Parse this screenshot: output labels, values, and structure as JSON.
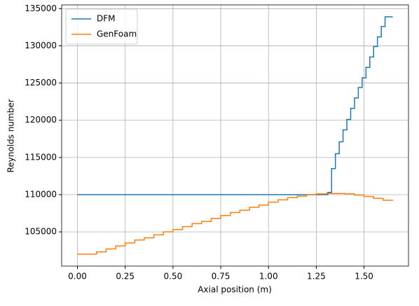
{
  "chart_data": {
    "type": "step",
    "xlabel": "Axial position (m)",
    "ylabel": "Reynolds number",
    "xlim": [
      -0.0825,
      1.7325
    ],
    "xticks": [
      {
        "value": 0,
        "label": "0.00"
      },
      0.25,
      {
        "value": 0.5,
        "label": "0.50"
      },
      0.75,
      {
        "value": 1,
        "label": "1.00"
      },
      1.25,
      {
        "value": 1.5,
        "label": "1.50"
      }
    ],
    "ylim": [
      100400,
      135500
    ],
    "yticks": [
      105000,
      110000,
      115000,
      120000,
      125000,
      130000,
      135000
    ],
    "grid": true,
    "legend": "upper left",
    "series": [
      {
        "name": "DFM",
        "color": "#1f77b4",
        "x": [
          0,
          1.3,
          1.31,
          1.33,
          1.35,
          1.37,
          1.39,
          1.41,
          1.43,
          1.45,
          1.47,
          1.49,
          1.51,
          1.53,
          1.55,
          1.57,
          1.59,
          1.61,
          1.63,
          1.65
        ],
        "values": [
          110000,
          110000,
          110300,
          113500,
          115500,
          117100,
          118700,
          120100,
          121600,
          123000,
          124400,
          125700,
          127100,
          128500,
          129900,
          131200,
          132600,
          133900,
          133900,
          133900
        ]
      },
      {
        "name": "GenFoam",
        "color": "#ff7f0e",
        "x": [
          0,
          0.05,
          0.1,
          0.15,
          0.2,
          0.25,
          0.3,
          0.35,
          0.4,
          0.45,
          0.5,
          0.55,
          0.6,
          0.65,
          0.7,
          0.75,
          0.8,
          0.85,
          0.9,
          0.95,
          1.0,
          1.05,
          1.1,
          1.15,
          1.2,
          1.25,
          1.3,
          1.35,
          1.4,
          1.45,
          1.5,
          1.55,
          1.6,
          1.65
        ],
        "values": [
          102000,
          102000,
          102300,
          102700,
          103100,
          103500,
          103900,
          104200,
          104600,
          105000,
          105300,
          105700,
          106100,
          106400,
          106800,
          107200,
          107600,
          107900,
          108300,
          108600,
          109000,
          109300,
          109600,
          109800,
          110000,
          110100,
          110150,
          110150,
          110100,
          109950,
          109750,
          109500,
          109250,
          109200
        ]
      }
    ]
  }
}
